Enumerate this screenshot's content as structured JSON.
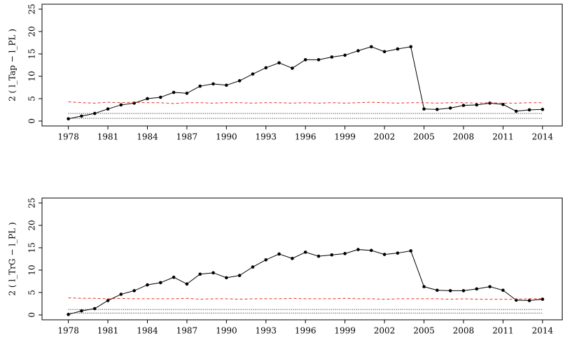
{
  "chart_data": [
    {
      "type": "line",
      "ylabel": "2 ( l_Tap − l_PL )",
      "x": [
        1978,
        1979,
        1980,
        1981,
        1982,
        1983,
        1984,
        1985,
        1986,
        1987,
        1988,
        1989,
        1990,
        1991,
        1992,
        1993,
        1994,
        1995,
        1996,
        1997,
        1998,
        1999,
        2000,
        2001,
        2002,
        2003,
        2004,
        2005,
        2006,
        2007,
        2008,
        2009,
        2010,
        2011,
        2012,
        2013,
        2014
      ],
      "xlim": [
        1976,
        2015.5
      ],
      "xticks": [
        1978,
        1981,
        1984,
        1987,
        1990,
        1993,
        1996,
        1999,
        2002,
        2005,
        2008,
        2011,
        2014
      ],
      "ylim": [
        -1.1,
        26.1
      ],
      "yticks": [
        0,
        5,
        10,
        15,
        20,
        25
      ],
      "series": [
        {
          "color": "#000000",
          "dash": "solid",
          "marker": true,
          "values": [
            0.5,
            1.1,
            1.7,
            2.7,
            3.6,
            4.0,
            5.0,
            5.3,
            6.4,
            6.2,
            7.8,
            8.3,
            8.0,
            9.0,
            10.5,
            11.9,
            13.0,
            11.8,
            13.7,
            13.7,
            14.3,
            14.7,
            15.7,
            16.6,
            15.5,
            16.1,
            16.6,
            2.7,
            2.6,
            2.9,
            3.5,
            3.6,
            4.0,
            3.7,
            2.2,
            2.5,
            2.6
          ]
        },
        {
          "color": "#e8302a",
          "dash": "dashed",
          "marker": false,
          "values": [
            4.3,
            4.1,
            4.0,
            4.2,
            4.1,
            4.2,
            4.1,
            4.1,
            3.9,
            4.1,
            4.1,
            4.0,
            4.1,
            4.1,
            4.0,
            4.1,
            4.1,
            4.0,
            4.1,
            4.0,
            4.1,
            4.0,
            4.1,
            4.2,
            4.1,
            4.0,
            4.1,
            4.1,
            4.0,
            4.1,
            4.1,
            4.0,
            4.1,
            4.0,
            4.0,
            4.1,
            4.1
          ]
        },
        {
          "color": "#000000",
          "dash": "dotted",
          "marker": false,
          "values": [
            1.7,
            1.7,
            1.7,
            1.7,
            1.7,
            1.7,
            1.7,
            1.7,
            1.7,
            1.7,
            1.7,
            1.7,
            1.7,
            1.7,
            1.7,
            1.7,
            1.7,
            1.7,
            1.7,
            1.7,
            1.7,
            1.7,
            1.7,
            1.7,
            1.7,
            1.7,
            1.7,
            1.7,
            1.7,
            1.7,
            1.7,
            1.7,
            1.7,
            1.7,
            1.7,
            1.7,
            1.7
          ]
        },
        {
          "color": "#000000",
          "dash": "dotted",
          "marker": false,
          "values": [
            0.6,
            0.6,
            0.6,
            0.6,
            0.6,
            0.6,
            0.6,
            0.6,
            0.6,
            0.6,
            0.6,
            0.6,
            0.6,
            0.6,
            0.6,
            0.6,
            0.6,
            0.6,
            0.6,
            0.6,
            0.6,
            0.6,
            0.6,
            0.6,
            0.6,
            0.6,
            0.6,
            0.6,
            0.6,
            0.6,
            0.6,
            0.6,
            0.6,
            0.6,
            0.6,
            0.6,
            0.6
          ]
        }
      ]
    },
    {
      "type": "line",
      "ylabel": "2 ( l_TrG − l_PL )",
      "x": [
        1978,
        1979,
        1980,
        1981,
        1982,
        1983,
        1984,
        1985,
        1986,
        1987,
        1988,
        1989,
        1990,
        1991,
        1992,
        1993,
        1994,
        1995,
        1996,
        1997,
        1998,
        1999,
        2000,
        2001,
        2002,
        2003,
        2004,
        2005,
        2006,
        2007,
        2008,
        2009,
        2010,
        2011,
        2012,
        2013,
        2014
      ],
      "xlim": [
        1976,
        2015.5
      ],
      "xticks": [
        1978,
        1981,
        1984,
        1987,
        1990,
        1993,
        1996,
        1999,
        2002,
        2005,
        2008,
        2011,
        2014
      ],
      "ylim": [
        -1.1,
        26.1
      ],
      "yticks": [
        0,
        5,
        10,
        15,
        20,
        25
      ],
      "series": [
        {
          "color": "#000000",
          "dash": "solid",
          "marker": true,
          "values": [
            0.1,
            0.9,
            1.4,
            3.2,
            4.6,
            5.4,
            6.7,
            7.2,
            8.4,
            6.9,
            9.1,
            9.4,
            8.3,
            8.8,
            10.7,
            12.3,
            13.6,
            12.6,
            14.0,
            13.1,
            13.4,
            13.7,
            14.6,
            14.4,
            13.5,
            13.8,
            14.3,
            6.3,
            5.5,
            5.4,
            5.4,
            5.8,
            6.3,
            5.5,
            3.3,
            3.2,
            3.5
          ]
        },
        {
          "color": "#e8302a",
          "dash": "dashed",
          "marker": false,
          "values": [
            3.8,
            3.7,
            3.7,
            3.6,
            3.7,
            3.6,
            3.6,
            3.6,
            3.6,
            3.7,
            3.5,
            3.6,
            3.6,
            3.5,
            3.6,
            3.6,
            3.6,
            3.7,
            3.6,
            3.6,
            3.6,
            3.7,
            3.6,
            3.6,
            3.5,
            3.6,
            3.6,
            3.6,
            3.6,
            3.5,
            3.6,
            3.5,
            3.5,
            3.5,
            3.5,
            3.6,
            3.6
          ]
        },
        {
          "color": "#000000",
          "dash": "dotted",
          "marker": false,
          "values": [
            1.2,
            1.2,
            1.2,
            1.2,
            1.2,
            1.2,
            1.2,
            1.2,
            1.2,
            1.2,
            1.2,
            1.2,
            1.2,
            1.2,
            1.2,
            1.2,
            1.2,
            1.2,
            1.2,
            1.2,
            1.2,
            1.2,
            1.2,
            1.2,
            1.2,
            1.2,
            1.2,
            1.2,
            1.2,
            1.2,
            1.2,
            1.2,
            1.2,
            1.2,
            1.2,
            1.2,
            1.2
          ]
        },
        {
          "color": "#000000",
          "dash": "dotted",
          "marker": false,
          "values": [
            0.4,
            0.4,
            0.4,
            0.4,
            0.4,
            0.4,
            0.4,
            0.4,
            0.4,
            0.4,
            0.4,
            0.4,
            0.4,
            0.4,
            0.4,
            0.4,
            0.4,
            0.4,
            0.4,
            0.4,
            0.4,
            0.4,
            0.4,
            0.4,
            0.4,
            0.4,
            0.4,
            0.4,
            0.4,
            0.4,
            0.4,
            0.4,
            0.4,
            0.4,
            0.4,
            0.4,
            0.4
          ]
        }
      ]
    }
  ]
}
